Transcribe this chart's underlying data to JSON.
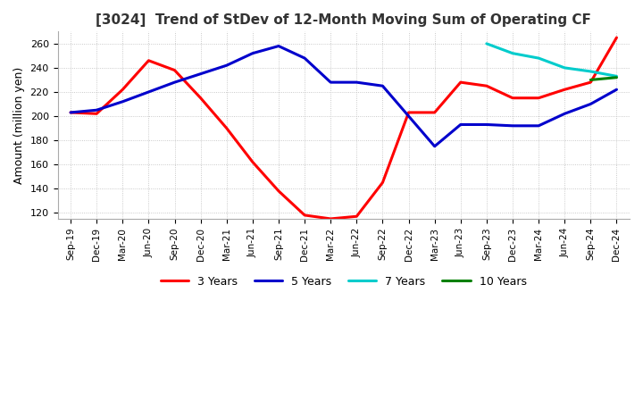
{
  "title": "[3024]  Trend of StDev of 12-Month Moving Sum of Operating CF",
  "ylabel": "Amount (million yen)",
  "ylim": [
    115,
    270
  ],
  "yticks": [
    120,
    140,
    160,
    180,
    200,
    220,
    240,
    260
  ],
  "legend_labels": [
    "3 Years",
    "5 Years",
    "7 Years",
    "10 Years"
  ],
  "legend_colors": [
    "#ff0000",
    "#0000cc",
    "#00cccc",
    "#008000"
  ],
  "background_color": "#ffffff",
  "x_labels": [
    "Sep-19",
    "Dec-19",
    "Mar-20",
    "Jun-20",
    "Sep-20",
    "Dec-20",
    "Mar-21",
    "Jun-21",
    "Sep-21",
    "Dec-21",
    "Mar-22",
    "Jun-22",
    "Sep-22",
    "Dec-22",
    "Mar-23",
    "Jun-23",
    "Sep-23",
    "Dec-23",
    "Mar-24",
    "Jun-24",
    "Sep-24",
    "Dec-24"
  ],
  "series_3yr": [
    203,
    202,
    222,
    246,
    238,
    215,
    190,
    162,
    138,
    118,
    115,
    117,
    145,
    203,
    203,
    228,
    225,
    215,
    215,
    222,
    228,
    265
  ],
  "series_5yr": [
    203,
    205,
    212,
    220,
    228,
    235,
    242,
    252,
    258,
    248,
    228,
    228,
    225,
    200,
    175,
    193,
    193,
    192,
    192,
    202,
    210,
    222
  ],
  "series_7yr": [
    null,
    null,
    null,
    null,
    null,
    null,
    null,
    null,
    null,
    null,
    null,
    null,
    null,
    null,
    null,
    null,
    260,
    252,
    248,
    240,
    237,
    233
  ],
  "series_10yr": [
    null,
    null,
    null,
    null,
    null,
    null,
    null,
    null,
    null,
    null,
    null,
    null,
    null,
    null,
    null,
    null,
    null,
    null,
    null,
    null,
    230,
    232
  ],
  "grid_color": "#bbbbbb",
  "grid_style": "dotted",
  "line_width": 2.2
}
